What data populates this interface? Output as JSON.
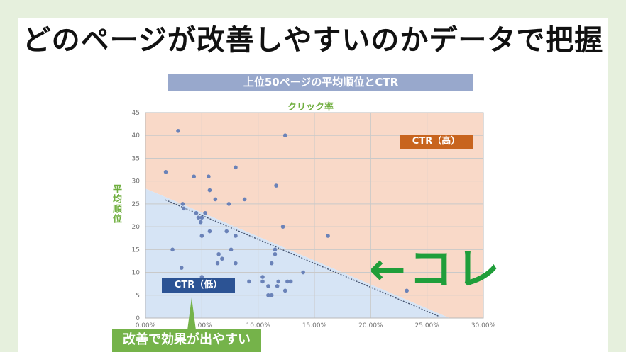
{
  "headline": "どのページが改善しやすいのかデータで把握",
  "subtitle": "上位50ページの平均順位とCTR",
  "chart_data": {
    "type": "scatter",
    "title": "クリック率",
    "xlabel": "",
    "ylabel": "平均順位",
    "xlim": [
      0,
      0.3
    ],
    "ylim": [
      0,
      45
    ],
    "x_ticks": [
      0,
      0.05,
      0.1,
      0.15,
      0.2,
      0.25,
      0.3
    ],
    "x_tick_labels": [
      "0.00%",
      "5.00%",
      "10.00%",
      "15.00%",
      "20.00%",
      "25.00%",
      "30.00%"
    ],
    "y_ticks": [
      0,
      5,
      10,
      15,
      20,
      25,
      30,
      35,
      40,
      45
    ],
    "y_tick_labels": [
      "0",
      "5",
      "10",
      "15",
      "20",
      "25",
      "30",
      "35",
      "40",
      "45"
    ],
    "grid": true,
    "regions": {
      "high_label": "CTR（高）",
      "low_label": "CTR（低）",
      "high_color": "#f9d9c8",
      "low_color": "#d6e4f5",
      "divider": [
        [
          0,
          26.5
        ],
        [
          0.27,
          0
        ]
      ]
    },
    "points": [
      {
        "x": 0.029,
        "y": 41
      },
      {
        "x": 0.124,
        "y": 40
      },
      {
        "x": 0.08,
        "y": 33
      },
      {
        "x": 0.018,
        "y": 32
      },
      {
        "x": 0.043,
        "y": 31
      },
      {
        "x": 0.056,
        "y": 31
      },
      {
        "x": 0.116,
        "y": 29
      },
      {
        "x": 0.057,
        "y": 28
      },
      {
        "x": 0.062,
        "y": 26
      },
      {
        "x": 0.088,
        "y": 26
      },
      {
        "x": 0.033,
        "y": 25
      },
      {
        "x": 0.034,
        "y": 24
      },
      {
        "x": 0.074,
        "y": 25
      },
      {
        "x": 0.045,
        "y": 23
      },
      {
        "x": 0.053,
        "y": 23
      },
      {
        "x": 0.047,
        "y": 22
      },
      {
        "x": 0.05,
        "y": 22
      },
      {
        "x": 0.049,
        "y": 21
      },
      {
        "x": 0.122,
        "y": 20
      },
      {
        "x": 0.057,
        "y": 19
      },
      {
        "x": 0.072,
        "y": 19
      },
      {
        "x": 0.08,
        "y": 18
      },
      {
        "x": 0.05,
        "y": 18
      },
      {
        "x": 0.162,
        "y": 18
      },
      {
        "x": 0.024,
        "y": 15
      },
      {
        "x": 0.076,
        "y": 15
      },
      {
        "x": 0.115,
        "y": 15
      },
      {
        "x": 0.065,
        "y": 14
      },
      {
        "x": 0.115,
        "y": 14
      },
      {
        "x": 0.064,
        "y": 12
      },
      {
        "x": 0.08,
        "y": 12
      },
      {
        "x": 0.112,
        "y": 12
      },
      {
        "x": 0.032,
        "y": 11
      },
      {
        "x": 0.068,
        "y": 13
      },
      {
        "x": 0.14,
        "y": 10
      },
      {
        "x": 0.104,
        "y": 9
      },
      {
        "x": 0.092,
        "y": 8
      },
      {
        "x": 0.118,
        "y": 8
      },
      {
        "x": 0.126,
        "y": 8
      },
      {
        "x": 0.129,
        "y": 8
      },
      {
        "x": 0.104,
        "y": 8
      },
      {
        "x": 0.117,
        "y": 7
      },
      {
        "x": 0.109,
        "y": 7
      },
      {
        "x": 0.109,
        "y": 5
      },
      {
        "x": 0.112,
        "y": 5
      },
      {
        "x": 0.124,
        "y": 6
      },
      {
        "x": 0.232,
        "y": 6
      },
      {
        "x": 0.05,
        "y": 9
      },
      {
        "x": 0.055,
        "y": 7
      },
      {
        "x": 0.043,
        "y": 8
      }
    ],
    "point_color": "#6a82b8"
  },
  "annotation": {
    "arrow_text": "←コレ",
    "callout_text": "改善で効果が出やすい",
    "arrow_color": "#1f9e3a",
    "callout_color": "#75b34a"
  }
}
